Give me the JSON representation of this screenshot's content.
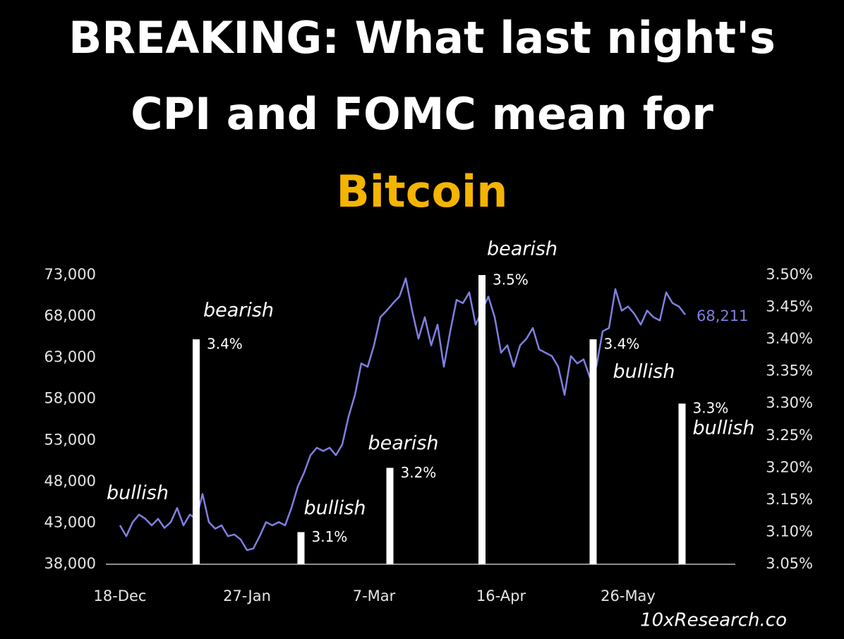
{
  "chart_data": {
    "type": "combo",
    "title_lines": [
      "BREAKING: What last night's",
      "CPI and FOMC mean for"
    ],
    "title_highlight": "Bitcoin",
    "source": "10xResearch.co",
    "xlim": [
      -4,
      194
    ],
    "xticks": [
      {
        "value": 0,
        "label": "18-Dec"
      },
      {
        "value": 40,
        "label": "27-Jan"
      },
      {
        "value": 80,
        "label": "7-Mar"
      },
      {
        "value": 120,
        "label": "16-Apr"
      },
      {
        "value": 160,
        "label": "26-May"
      }
    ],
    "ylim": [
      38000,
      73000
    ],
    "yticks": [
      {
        "value": 38000,
        "label": "38,000"
      },
      {
        "value": 43000,
        "label": "43,000"
      },
      {
        "value": 48000,
        "label": "48,000"
      },
      {
        "value": 53000,
        "label": "53,000"
      },
      {
        "value": 58000,
        "label": "58,000"
      },
      {
        "value": 63000,
        "label": "63,000"
      },
      {
        "value": 68000,
        "label": "68,000"
      },
      {
        "value": 73000,
        "label": "73,000"
      }
    ],
    "y2lim": [
      3.05,
      3.5
    ],
    "y2ticks": [
      {
        "value": 3.05,
        "label": "3.05%"
      },
      {
        "value": 3.1,
        "label": "3.10%"
      },
      {
        "value": 3.15,
        "label": "3.15%"
      },
      {
        "value": 3.2,
        "label": "3.20%"
      },
      {
        "value": 3.25,
        "label": "3.25%"
      },
      {
        "value": 3.3,
        "label": "3.30%"
      },
      {
        "value": 3.35,
        "label": "3.35%"
      },
      {
        "value": 3.4,
        "label": "3.40%"
      },
      {
        "value": 3.45,
        "label": "3.45%"
      },
      {
        "value": 3.5,
        "label": "3.50%"
      }
    ],
    "series": [
      {
        "type": "line",
        "color": "#7f7fe0",
        "x": [
          0,
          2,
          4,
          6,
          8,
          10,
          12,
          14,
          16,
          18,
          20,
          22,
          24,
          26,
          28,
          30,
          32,
          34,
          36,
          38,
          40,
          42,
          44,
          46,
          48,
          50,
          52,
          54,
          56,
          58,
          60,
          62,
          64,
          66,
          68,
          70,
          72,
          74,
          76,
          78,
          80,
          82,
          84,
          86,
          88,
          90,
          92,
          94,
          96,
          98,
          100,
          102,
          104,
          106,
          108,
          110,
          112,
          114,
          116,
          118,
          120,
          122,
          124,
          126,
          128,
          130,
          132,
          134,
          136,
          138,
          140,
          142,
          144,
          146,
          148,
          150,
          152,
          154,
          156,
          158,
          160,
          162,
          164,
          166,
          168,
          170,
          172,
          174,
          176,
          178
        ],
        "values": [
          42700,
          41400,
          43100,
          44000,
          43500,
          42700,
          43500,
          42400,
          43100,
          44800,
          42700,
          44000,
          43500,
          46500,
          43100,
          42300,
          42700,
          41400,
          41600,
          41000,
          39700,
          39900,
          41400,
          43100,
          42700,
          43100,
          42700,
          44800,
          47400,
          49100,
          51200,
          52100,
          51700,
          52100,
          51200,
          52500,
          55900,
          58500,
          62300,
          61900,
          64500,
          67900,
          68700,
          69600,
          70400,
          72600,
          68700,
          65300,
          67900,
          64500,
          67000,
          61900,
          66200,
          70000,
          69600,
          70900,
          67000,
          68700,
          70400,
          67900,
          63600,
          64500,
          61900,
          64500,
          65300,
          66600,
          64000,
          63600,
          63200,
          61900,
          58500,
          63200,
          62300,
          62800,
          60600,
          61900,
          66200,
          66600,
          71300,
          68700,
          69200,
          68300,
          67000,
          68700,
          67900,
          67500,
          70900,
          69600,
          69200,
          68211
        ],
        "last_label": "68,211"
      },
      {
        "type": "bar",
        "axis": "y2",
        "color": "#ffffff",
        "x": [
          24,
          57,
          85,
          114,
          149,
          177
        ],
        "values": [
          3.4,
          3.1,
          3.2,
          3.5,
          3.4,
          3.3
        ],
        "value_labels": [
          "3.4%",
          "3.1%",
          "3.2%",
          "3.5%",
          "3.4%",
          "3.3%"
        ],
        "sentiments": [
          "bearish",
          "bullish",
          "bearish",
          "bearish",
          "bullish",
          "bullish"
        ]
      }
    ],
    "annotation": "bullish"
  }
}
